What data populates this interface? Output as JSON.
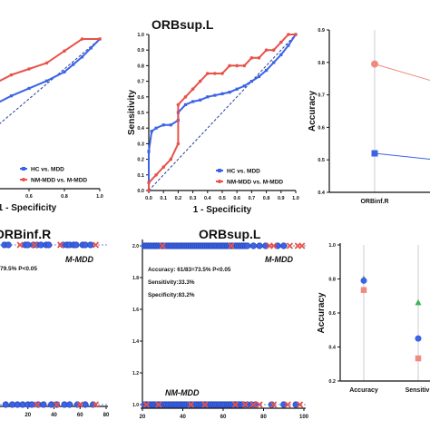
{
  "colors": {
    "blue": "#3b63e6",
    "red": "#e8524a",
    "red_light": "#f08a80",
    "green": "#3fb24f",
    "dashed": "#1f3f99",
    "axis": "#111111",
    "grid": "#cccccc"
  },
  "chart_data": [
    {
      "id": "roc-orbinf-r",
      "type": "line",
      "title": "",
      "xlabel": "1 - Specificity",
      "ylabel": "",
      "xlim": [
        0,
        1
      ],
      "ylim": [
        0,
        1
      ],
      "x_tick_labels": [
        "0.4",
        "0.6",
        "0.8",
        "1.0"
      ],
      "diagonal": true,
      "legend": {
        "position": "bottom-right",
        "entries": [
          "HC vs. MDD",
          "NM-MDD vs. M-MDD"
        ]
      },
      "series": [
        {
          "name": "HC vs. MDD",
          "color": "blue",
          "x": [
            0.0,
            0.1,
            0.2,
            0.3,
            0.4,
            0.5,
            0.6,
            0.7,
            0.8,
            0.85,
            0.9,
            0.95,
            1.0
          ],
          "y": [
            0.12,
            0.3,
            0.42,
            0.5,
            0.56,
            0.62,
            0.67,
            0.72,
            0.78,
            0.83,
            0.88,
            0.94,
            1.0
          ]
        },
        {
          "name": "NM-MDD vs. M-MDD",
          "color": "red",
          "x": [
            0.0,
            0.1,
            0.2,
            0.3,
            0.4,
            0.5,
            0.6,
            0.7,
            0.8,
            0.9,
            1.0
          ],
          "y": [
            0.35,
            0.5,
            0.58,
            0.64,
            0.7,
            0.76,
            0.8,
            0.84,
            0.92,
            1.0,
            1.0
          ]
        }
      ]
    },
    {
      "id": "roc-orbsup-l",
      "type": "line",
      "title": "ORBsup.L",
      "xlabel": "1 - Specificity",
      "ylabel": "Sensitivity",
      "xlim": [
        0,
        1
      ],
      "ylim": [
        0,
        1
      ],
      "x_ticks": [
        0.0,
        0.1,
        0.2,
        0.3,
        0.4,
        0.5,
        0.6,
        0.7,
        0.8,
        0.9,
        1.0
      ],
      "x_tick_labels": [
        "0.0",
        "0.1",
        "0.2",
        "0.3",
        "0.4",
        "0.5",
        "0.6",
        "0.7",
        "0.8",
        "0.9",
        "1.0"
      ],
      "y_ticks": [
        0.0,
        0.1,
        0.2,
        0.3,
        0.4,
        0.5,
        0.6,
        0.7,
        0.8,
        0.9,
        1.0
      ],
      "y_tick_labels": [
        "0.0",
        "0.1",
        "0.2",
        "0.3",
        "0.4",
        "0.5",
        "0.6",
        "0.7",
        "0.8",
        "0.9",
        "1.0"
      ],
      "diagonal": true,
      "legend": {
        "position": "bottom-right",
        "entries": [
          "HC vs. MDD",
          "NM-MDD vs. M-MDD"
        ]
      },
      "series": [
        {
          "name": "HC vs. MDD",
          "color": "blue",
          "x": [
            0.0,
            0.0,
            0.02,
            0.05,
            0.1,
            0.15,
            0.2,
            0.2,
            0.25,
            0.3,
            0.35,
            0.4,
            0.45,
            0.5,
            0.55,
            0.6,
            0.65,
            0.7,
            0.75,
            0.8,
            0.85,
            0.9,
            0.95,
            1.0
          ],
          "y": [
            0.0,
            0.25,
            0.38,
            0.4,
            0.42,
            0.42,
            0.45,
            0.5,
            0.55,
            0.57,
            0.58,
            0.6,
            0.61,
            0.62,
            0.63,
            0.65,
            0.67,
            0.7,
            0.73,
            0.77,
            0.82,
            0.87,
            0.93,
            1.0
          ]
        },
        {
          "name": "NM-MDD vs. M-MDD",
          "color": "red",
          "x": [
            0.0,
            0.0,
            0.05,
            0.1,
            0.15,
            0.2,
            0.2,
            0.25,
            0.3,
            0.35,
            0.4,
            0.45,
            0.5,
            0.55,
            0.6,
            0.65,
            0.7,
            0.75,
            0.8,
            0.85,
            0.9,
            0.95,
            1.0
          ],
          "y": [
            0.0,
            0.05,
            0.1,
            0.15,
            0.2,
            0.3,
            0.55,
            0.6,
            0.65,
            0.7,
            0.75,
            0.75,
            0.75,
            0.8,
            0.8,
            0.8,
            0.85,
            0.85,
            0.9,
            0.9,
            0.95,
            1.0,
            1.0
          ]
        }
      ]
    },
    {
      "id": "accuracy-line",
      "type": "line",
      "title": "",
      "xlabel": "",
      "ylabel": "Accuracy",
      "ylim": [
        0.4,
        0.9
      ],
      "y_ticks": [
        0.4,
        0.5,
        0.6,
        0.7,
        0.8,
        0.9
      ],
      "y_tick_labels": [
        "0.4",
        "0.5",
        "0.6",
        "0.7",
        "0.8",
        "0.9"
      ],
      "categories": [
        "ORBinf.R"
      ],
      "series": [
        {
          "color": "red_light",
          "marker": "circle",
          "values": [
            0.795
          ],
          "trend_end": 0.74
        },
        {
          "color": "blue",
          "marker": "square",
          "values": [
            0.52
          ],
          "trend_end": 0.5
        }
      ]
    },
    {
      "id": "scatter-orbinf-r",
      "type": "scatter",
      "title": "ORBinf.R",
      "xlim": [
        0,
        80
      ],
      "x_ticks": [
        20,
        40,
        60,
        80
      ],
      "x_tick_labels": [
        "20",
        "40",
        "60",
        "80"
      ],
      "annotations": [
        "79.5%  P<0.05",
        "M-MDD"
      ],
      "rows": [
        {
          "level": "top",
          "blue_circles": [
            2,
            5,
            18,
            20,
            24,
            27,
            30,
            34,
            36,
            47,
            50,
            52,
            55,
            57,
            62,
            64,
            68
          ],
          "red_crosses": [
            14,
            25,
            45,
            72
          ]
        },
        {
          "level": "bottom",
          "blue_circles": [
            3,
            8,
            12,
            16,
            20,
            23,
            28,
            32,
            38,
            42,
            48,
            52,
            58,
            64,
            70
          ],
          "red_crosses": [
            27,
            42,
            60,
            72
          ]
        }
      ]
    },
    {
      "id": "scatter-orbsup-l",
      "type": "scatter",
      "title": "ORBsup.L",
      "xlim": [
        20,
        100
      ],
      "x_ticks": [
        20,
        40,
        60,
        80,
        100
      ],
      "x_tick_labels": [
        "20",
        "40",
        "60",
        "80",
        "100"
      ],
      "ylim": [
        1.0,
        2.0
      ],
      "y_ticks": [
        1.0,
        1.2,
        1.4,
        1.6,
        1.8,
        2.0
      ],
      "y_tick_labels": [
        "1.0",
        "1.2",
        "1.4",
        "1.6",
        "1.8",
        "2.0"
      ],
      "annotations": [
        "Accuracy: 61/83=73.5%   P<0.05",
        "Sensitivity:33.3%",
        "Specificity:83.2%",
        "M-MDD",
        "NM-MDD"
      ],
      "rows": [
        {
          "level": 2.0,
          "blue_circles": [
            21,
            22,
            23,
            24,
            25,
            26,
            27,
            28,
            29,
            30,
            31,
            32,
            33,
            34,
            35,
            36,
            37,
            38,
            39,
            40,
            41,
            42,
            43,
            44,
            45,
            46,
            47,
            48,
            49,
            50,
            51,
            52,
            53,
            54,
            55,
            56,
            57,
            58,
            59,
            60,
            61,
            62,
            63,
            64,
            65,
            66,
            67,
            68,
            69,
            70,
            71,
            72,
            75,
            78,
            81,
            87,
            90
          ],
          "red_crosses": [
            30,
            64,
            83,
            85,
            93,
            97,
            99
          ]
        },
        {
          "level": 1.0,
          "blue_circles": [
            21,
            22,
            23,
            24,
            25,
            26,
            27,
            28,
            29,
            30,
            31,
            32,
            33,
            34,
            35,
            36,
            37,
            38,
            39,
            40,
            41,
            42,
            43,
            44,
            45,
            46,
            47,
            48,
            49,
            50,
            51,
            52,
            53,
            54,
            55,
            56,
            57,
            58,
            59,
            60,
            61,
            62,
            63,
            64,
            65,
            66,
            67,
            68,
            69,
            70,
            72,
            74,
            76,
            84,
            90,
            96
          ],
          "red_crosses": [
            22,
            28,
            44,
            51,
            66,
            71,
            75,
            78,
            85,
            92,
            98
          ]
        }
      ]
    },
    {
      "id": "metrics-dot",
      "type": "scatter",
      "title": "",
      "xlabel": "",
      "ylabel": "Accuracy",
      "ylim": [
        0.2,
        1.0
      ],
      "y_ticks": [
        0.2,
        0.4,
        0.6,
        0.8,
        1.0
      ],
      "y_tick_labels": [
        "0.2",
        "0.4",
        "0.6",
        "0.8",
        "1.0"
      ],
      "categories": [
        "Accuracy",
        "Sensitivi"
      ],
      "series": [
        {
          "marker": "triangle",
          "color": "green",
          "values": [
            0.8,
            0.66
          ]
        },
        {
          "marker": "circle",
          "color": "blue",
          "values": [
            0.79,
            0.45
          ]
        },
        {
          "marker": "square",
          "color": "red_light",
          "values": [
            0.735,
            0.333
          ]
        }
      ]
    }
  ]
}
